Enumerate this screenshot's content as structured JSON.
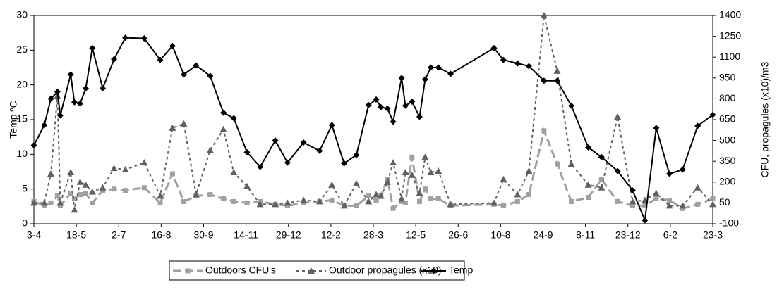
{
  "chart_data": {
    "type": "line",
    "y_label": "Temp ºC",
    "y2_label": "CFU, propagules (x10)/m3",
    "x": [
      0,
      11,
      18,
      25,
      28,
      39,
      43,
      49,
      55,
      62,
      73,
      85,
      97,
      117,
      134,
      147,
      159,
      172,
      187,
      201,
      212,
      226,
      240,
      256,
      269,
      286,
      303,
      316,
      329,
      342,
      355,
      363,
      368,
      375,
      381,
      390,
      394,
      401,
      409,
      415,
      421,
      429,
      442,
      488,
      498,
      513,
      525,
      541,
      555,
      570,
      588,
      602,
      619,
      635,
      648,
      660,
      674,
      688,
      704,
      720
    ],
    "xlim": [
      0,
      720
    ],
    "xticks": [
      {
        "value": 0,
        "label": "3-4"
      },
      {
        "value": 45,
        "label": "18-5"
      },
      {
        "value": 90,
        "label": "2-7"
      },
      {
        "value": 135,
        "label": "16-8"
      },
      {
        "value": 180,
        "label": "30-9"
      },
      {
        "value": 225,
        "label": "14-11"
      },
      {
        "value": 270,
        "label": "29-12"
      },
      {
        "value": 315,
        "label": "12-2"
      },
      {
        "value": 360,
        "label": "28-3"
      },
      {
        "value": 405,
        "label": "12-5"
      },
      {
        "value": 450,
        "label": "26-6"
      },
      {
        "value": 495,
        "label": "10-8"
      },
      {
        "value": 540,
        "label": "24-9"
      },
      {
        "value": 585,
        "label": "8-11"
      },
      {
        "value": 630,
        "label": "23-12"
      },
      {
        "value": 675,
        "label": "6-2"
      },
      {
        "value": 720,
        "label": "23-3"
      }
    ],
    "ylim": [
      0,
      30
    ],
    "yticks": [
      0,
      5,
      10,
      15,
      20,
      25,
      30
    ],
    "y2lim": [
      -100,
      1400
    ],
    "y2ticks": [
      -100,
      50,
      200,
      350,
      500,
      650,
      800,
      950,
      1100,
      1250,
      1400
    ],
    "legend": "bottom",
    "series": [
      {
        "name": "Outdoors CFU's",
        "color": "#a0a0a0",
        "axis": "y2",
        "marker": "square",
        "values": [
          60,
          30,
          50,
          100,
          30,
          120,
          80,
          110,
          120,
          50,
          140,
          150,
          140,
          160,
          50,
          260,
          60,
          100,
          110,
          80,
          60,
          50,
          60,
          40,
          30,
          50,
          60,
          70,
          30,
          30,
          100,
          70,
          100,
          220,
          10,
          60,
          50,
          380,
          60,
          150,
          80,
          80,
          30,
          40,
          30,
          60,
          110,
          570,
          330,
          60,
          90,
          220,
          60,
          30,
          30,
          80,
          70,
          10,
          40,
          80
        ]
      },
      {
        "name": "Outdoor propagules (x10)",
        "color": "#606060",
        "axis": "y2",
        "marker": "triangle",
        "values": [
          50,
          50,
          260,
          820,
          50,
          270,
          0,
          200,
          180,
          130,
          160,
          300,
          290,
          340,
          100,
          590,
          620,
          110,
          430,
          580,
          270,
          170,
          40,
          40,
          50,
          70,
          60,
          180,
          30,
          190,
          60,
          110,
          100,
          200,
          340,
          80,
          270,
          250,
          120,
          380,
          270,
          280,
          40,
          50,
          220,
          110,
          280,
          1400,
          1000,
          330,
          180,
          160,
          670,
          60,
          70,
          120,
          30,
          30,
          160,
          40
        ]
      },
      {
        "name": "Temp",
        "color": "#000000",
        "axis": "y",
        "marker": "diamond",
        "values": [
          11.3,
          14.2,
          18.0,
          19.0,
          15.6,
          21.5,
          17.5,
          17.3,
          19.5,
          25.3,
          19.5,
          23.7,
          26.8,
          26.7,
          23.6,
          25.6,
          21.5,
          22.8,
          21.3,
          16,
          15.2,
          10.3,
          8.2,
          12,
          8.8,
          11.7,
          10.5,
          14.2,
          8.7,
          9.9,
          17.1,
          17.9,
          16.8,
          16.6,
          14.7,
          21,
          17,
          17.6,
          15.4,
          20.8,
          22.5,
          22.5,
          21.6,
          25.3,
          23.6,
          23.1,
          22.7,
          20.6,
          20.6,
          17,
          11,
          9.6,
          7.6,
          4.8,
          0.5,
          13.8,
          7.2,
          7.8,
          14.1,
          15.7
        ]
      }
    ]
  }
}
